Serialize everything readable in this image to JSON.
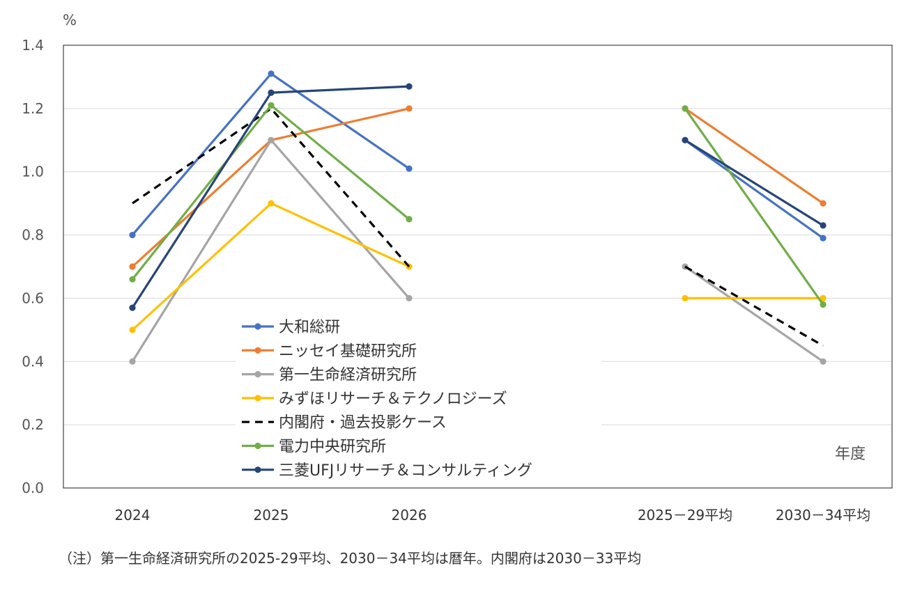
{
  "chart_data": {
    "type": "line",
    "y_unit_label": "%",
    "x_unit_label": "年度",
    "categories": [
      "2024",
      "2025",
      "2026",
      "2025－29平均",
      "2030－34平均"
    ],
    "ylim": [
      0,
      1.4
    ],
    "yticks": [
      "0.0",
      "0.2",
      "0.4",
      "0.6",
      "0.8",
      "1.0",
      "1.2",
      "1.4"
    ],
    "grid": true,
    "legend_position": "bottom-left inside plot",
    "series": [
      {
        "name": "大和総研",
        "color": "#4472C4",
        "dashed": false,
        "values": [
          0.8,
          1.31,
          1.01,
          1.1,
          0.79
        ]
      },
      {
        "name": "ニッセイ基礎研究所",
        "color": "#ED7D31",
        "dashed": false,
        "values": [
          0.7,
          1.1,
          1.2,
          1.2,
          0.9
        ]
      },
      {
        "name": "第一生命経済研究所",
        "color": "#A5A5A5",
        "dashed": false,
        "values": [
          0.4,
          1.1,
          0.6,
          0.7,
          0.4
        ]
      },
      {
        "name": "みずほリサーチ＆テクノロジーズ",
        "color": "#FFC000",
        "dashed": false,
        "values": [
          0.5,
          0.9,
          0.7,
          0.6,
          0.6
        ]
      },
      {
        "name": "内閣府・過去投影ケース",
        "color": "#000000",
        "dashed": true,
        "values": [
          0.9,
          1.2,
          0.7,
          0.7,
          0.45
        ]
      },
      {
        "name": "電力中央研究所",
        "color": "#70AD47",
        "dashed": false,
        "values": [
          0.66,
          1.21,
          0.85,
          1.2,
          0.58
        ]
      },
      {
        "name": "三菱UFJリサーチ＆コンサルティング",
        "color": "#264478",
        "dashed": false,
        "values": [
          0.57,
          1.25,
          1.27,
          1.1,
          0.83
        ]
      }
    ],
    "note": "（注）第一生命経済研究所の2025-29平均、2030－34平均は暦年。内閣府は2030－33平均"
  }
}
